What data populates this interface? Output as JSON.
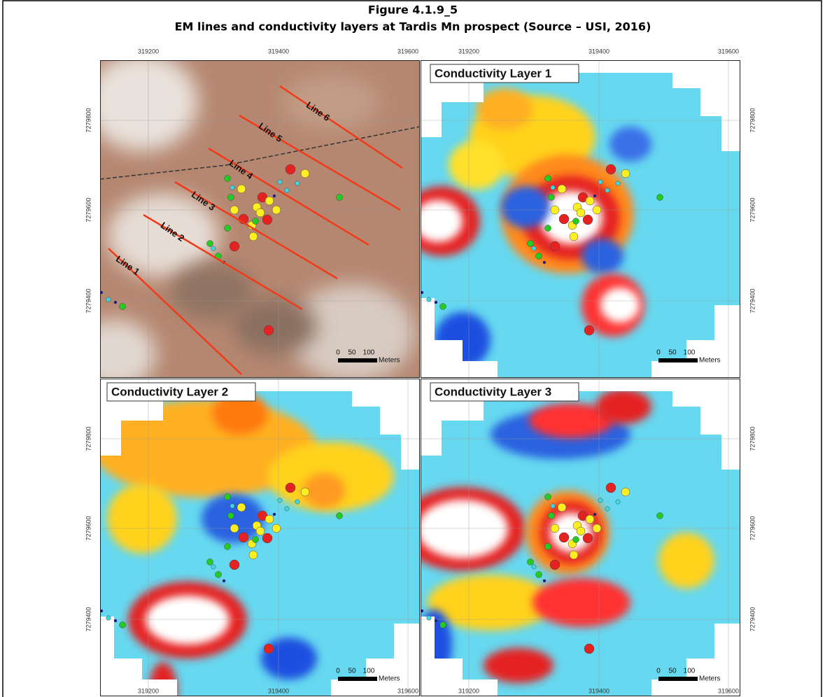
{
  "figure": {
    "title": "Figure 4.1.9_5",
    "subtitle": "EM lines and conductivity layers at Tardis Mn prospect (Source – USI, 2016)"
  },
  "axes": {
    "x_ticks": [
      "319200",
      "319400",
      "319600"
    ],
    "y_ticks": [
      "7279800",
      "7279600",
      "7279400"
    ]
  },
  "panels": [
    "Conductivity Layer 1",
    "Conductivity Layer 2",
    "Conductivity Layer 3"
  ],
  "em_lines": [
    "Line 1",
    "Line 2",
    "Line 3",
    "Line 4",
    "Line 5",
    "Line 6"
  ],
  "scale_bar": {
    "ticks": [
      "0",
      "50",
      "100"
    ],
    "unit": "Meters"
  }
}
